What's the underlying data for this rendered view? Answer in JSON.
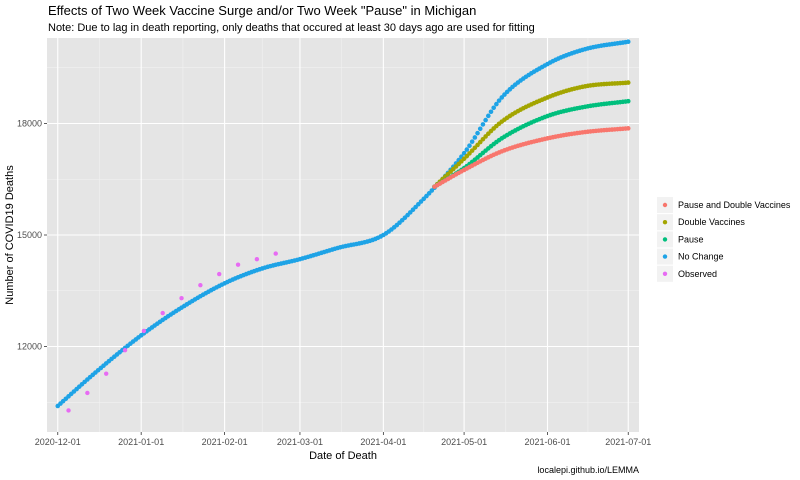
{
  "chart_data": {
    "type": "line",
    "title": "Effects of Two Week Vaccine Surge and/or Two Week \"Pause\" in Michigan",
    "subtitle": "Note: Due to lag in death reporting, only deaths that occured at least 30 days ago are used for fitting",
    "xlabel": "Date of Death",
    "ylabel": "Number of COVID19 Deaths",
    "caption": "localepi.github.io/LEMMA",
    "x_ticks": [
      "2020-12-01",
      "2021-01-01",
      "2021-02-01",
      "2021-03-01",
      "2021-04-01",
      "2021-05-01",
      "2021-06-01",
      "2021-07-01"
    ],
    "y_ticks": [
      12000,
      15000,
      18000
    ],
    "xlim": [
      "2020-11-27",
      "2021-07-05"
    ],
    "ylim": [
      9700,
      20300
    ],
    "grid": true,
    "legend_position": "right",
    "background": "#e5e5e5",
    "series": [
      {
        "name": "Pause and Double Vaccines",
        "color": "#f8766d",
        "x": [
          "2021-04-20",
          "2021-05-01",
          "2021-05-15",
          "2021-06-01",
          "2021-06-15",
          "2021-07-01"
        ],
        "y": [
          16300,
          16750,
          17250,
          17600,
          17770,
          17870
        ]
      },
      {
        "name": "Double Vaccines",
        "color": "#a3a500",
        "x": [
          "2021-04-20",
          "2021-05-01",
          "2021-05-15",
          "2021-06-01",
          "2021-06-15",
          "2021-07-01"
        ],
        "y": [
          16300,
          17050,
          18050,
          18700,
          19000,
          19100
        ]
      },
      {
        "name": "Pause",
        "color": "#00bf7d",
        "x": [
          "2021-04-20",
          "2021-05-01",
          "2021-05-15",
          "2021-06-01",
          "2021-06-15",
          "2021-07-01"
        ],
        "y": [
          16300,
          16800,
          17600,
          18200,
          18450,
          18600
        ]
      },
      {
        "name": "No Change",
        "color": "#1ea3e6",
        "x": [
          "2020-12-01",
          "2020-12-15",
          "2021-01-01",
          "2021-01-15",
          "2021-02-01",
          "2021-02-15",
          "2021-03-01",
          "2021-03-15",
          "2021-04-01",
          "2021-04-15",
          "2021-05-01",
          "2021-05-15",
          "2021-06-01",
          "2021-06-15",
          "2021-07-01"
        ],
        "y": [
          10400,
          11300,
          12300,
          13000,
          13700,
          14100,
          14350,
          14650,
          15000,
          15900,
          17200,
          18700,
          19600,
          20000,
          20200
        ]
      },
      {
        "name": "Observed",
        "color": "#e76bf3",
        "points_only": true,
        "x": [
          "2020-12-05",
          "2020-12-12",
          "2020-12-19",
          "2020-12-26",
          "2021-01-02",
          "2021-01-09",
          "2021-01-16",
          "2021-01-23",
          "2021-01-30",
          "2021-02-06",
          "2021-02-13",
          "2021-02-20"
        ],
        "y": [
          10280,
          10750,
          11270,
          11900,
          12420,
          12900,
          13300,
          13650,
          13950,
          14200,
          14350,
          14500
        ]
      }
    ]
  }
}
